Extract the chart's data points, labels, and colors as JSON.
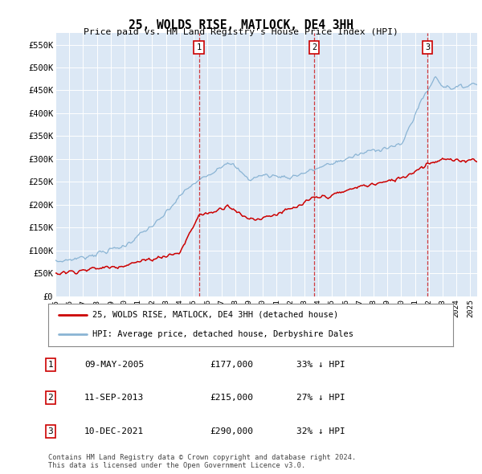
{
  "title": "25, WOLDS RISE, MATLOCK, DE4 3HH",
  "subtitle": "Price paid vs. HM Land Registry's House Price Index (HPI)",
  "background_color": "#ffffff",
  "plot_bg_color": "#dce8f5",
  "grid_color": "#ffffff",
  "hpi_color": "#8ab4d4",
  "price_color": "#cc0000",
  "transactions": [
    {
      "num": 1,
      "date": "09-MAY-2005",
      "price": 177000,
      "hpi_diff": "33% ↓ HPI",
      "year": 2005.37
    },
    {
      "num": 2,
      "date": "11-SEP-2013",
      "price": 215000,
      "hpi_diff": "27% ↓ HPI",
      "year": 2013.7
    },
    {
      "num": 3,
      "date": "10-DEC-2021",
      "price": 290000,
      "hpi_diff": "32% ↓ HPI",
      "year": 2021.92
    }
  ],
  "legend_line1": "25, WOLDS RISE, MATLOCK, DE4 3HH (detached house)",
  "legend_line2": "HPI: Average price, detached house, Derbyshire Dales",
  "footer": "Contains HM Land Registry data © Crown copyright and database right 2024.\nThis data is licensed under the Open Government Licence v3.0.",
  "ylim": [
    0,
    575000
  ],
  "yticks": [
    0,
    50000,
    100000,
    150000,
    200000,
    250000,
    300000,
    350000,
    400000,
    450000,
    500000,
    550000
  ],
  "ytick_labels": [
    "£0",
    "£50K",
    "£100K",
    "£150K",
    "£200K",
    "£250K",
    "£300K",
    "£350K",
    "£400K",
    "£450K",
    "£500K",
    "£550K"
  ],
  "x_start": 1995.0,
  "x_end": 2025.5,
  "xtick_years": [
    1995,
    1996,
    1997,
    1998,
    1999,
    2000,
    2001,
    2002,
    2003,
    2004,
    2005,
    2006,
    2007,
    2008,
    2009,
    2010,
    2011,
    2012,
    2013,
    2014,
    2015,
    2016,
    2017,
    2018,
    2019,
    2020,
    2021,
    2022,
    2023,
    2024,
    2025
  ]
}
